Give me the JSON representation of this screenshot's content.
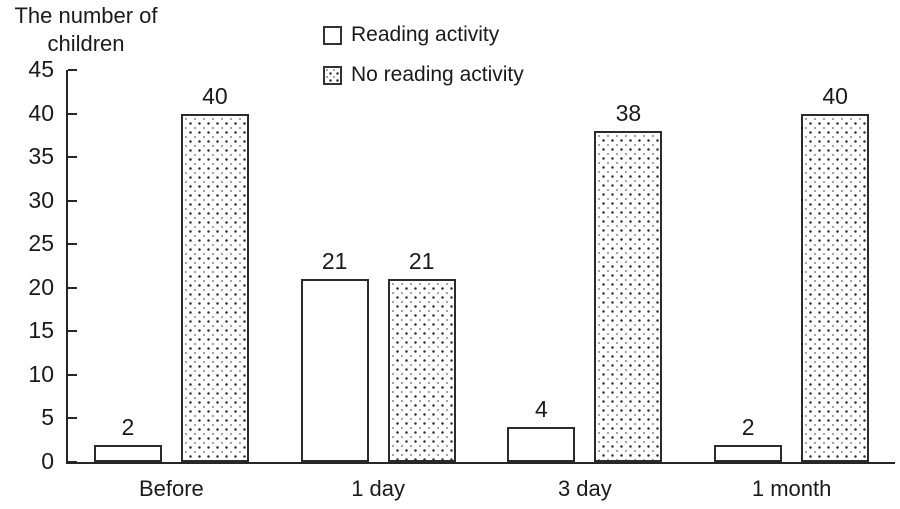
{
  "title": {
    "line1": "The number of",
    "line2": "children"
  },
  "legend": {
    "items": [
      {
        "label": "Reading activity",
        "marker": "plain-square"
      },
      {
        "label": "No reading activity",
        "marker": "dotted-square"
      }
    ]
  },
  "colors": {
    "text": "#1a1a1a",
    "axis": "#262626",
    "bar_border": "#2b2b2b",
    "bar_fill": "#ffffff"
  },
  "chart_data": {
    "type": "bar",
    "title": "The number of children",
    "ylabel": "The number of children",
    "categories": [
      "Before",
      "1 day",
      "3 day",
      "1 month"
    ],
    "series": [
      {
        "name": "Reading activity",
        "pattern": "plain",
        "values": [
          2,
          21,
          4,
          2
        ]
      },
      {
        "name": "No reading activity",
        "pattern": "dotted",
        "values": [
          40,
          21,
          38,
          40
        ]
      }
    ],
    "ylim": [
      0,
      45
    ],
    "ytick_step": 5,
    "yticks": [
      0,
      5,
      10,
      15,
      20,
      25,
      30,
      35,
      40,
      45
    ],
    "grid": false,
    "legend_position": "top-center",
    "bar_value_labels": true
  }
}
